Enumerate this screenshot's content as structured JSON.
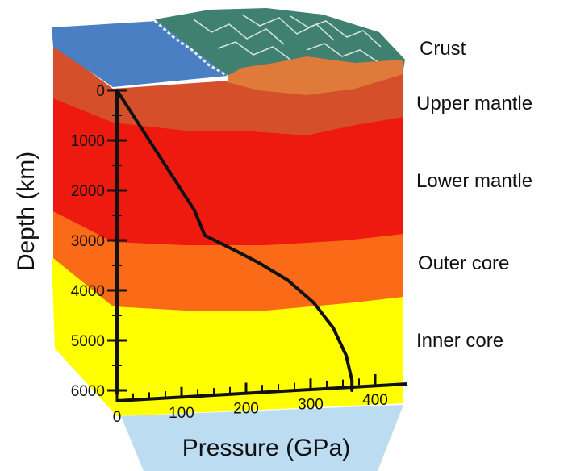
{
  "layers": [
    {
      "label": "Crust",
      "color": "#4a7fc4"
    },
    {
      "label": "Upper mantle",
      "color": "#d5502a"
    },
    {
      "label": "Lower mantle",
      "color": "#ee1a10"
    },
    {
      "label": "Outer core",
      "color": "#fb6a16"
    },
    {
      "label": "Inner core",
      "color": "#ffff00"
    }
  ],
  "chart_data": {
    "type": "line",
    "xlabel": "Pressure (GPa)",
    "ylabel": "Depth (km)",
    "xlim": [
      0,
      400
    ],
    "ylim": [
      6000,
      0
    ],
    "x_ticks": [
      "0",
      "100",
      "200",
      "300",
      "400"
    ],
    "y_ticks": [
      "0",
      "1000",
      "2000",
      "3000",
      "4000",
      "5000",
      "6000"
    ],
    "series": [
      {
        "color": "#111111",
        "points": [
          [
            0,
            0
          ],
          [
            20,
            400
          ],
          [
            45,
            900
          ],
          [
            70,
            1400
          ],
          [
            95,
            1900
          ],
          [
            120,
            2400
          ],
          [
            136,
            2900
          ],
          [
            175,
            3150
          ],
          [
            220,
            3450
          ],
          [
            265,
            3800
          ],
          [
            305,
            4250
          ],
          [
            335,
            4750
          ],
          [
            355,
            5300
          ],
          [
            364,
            5800
          ],
          [
            364,
            6000
          ]
        ]
      }
    ]
  }
}
